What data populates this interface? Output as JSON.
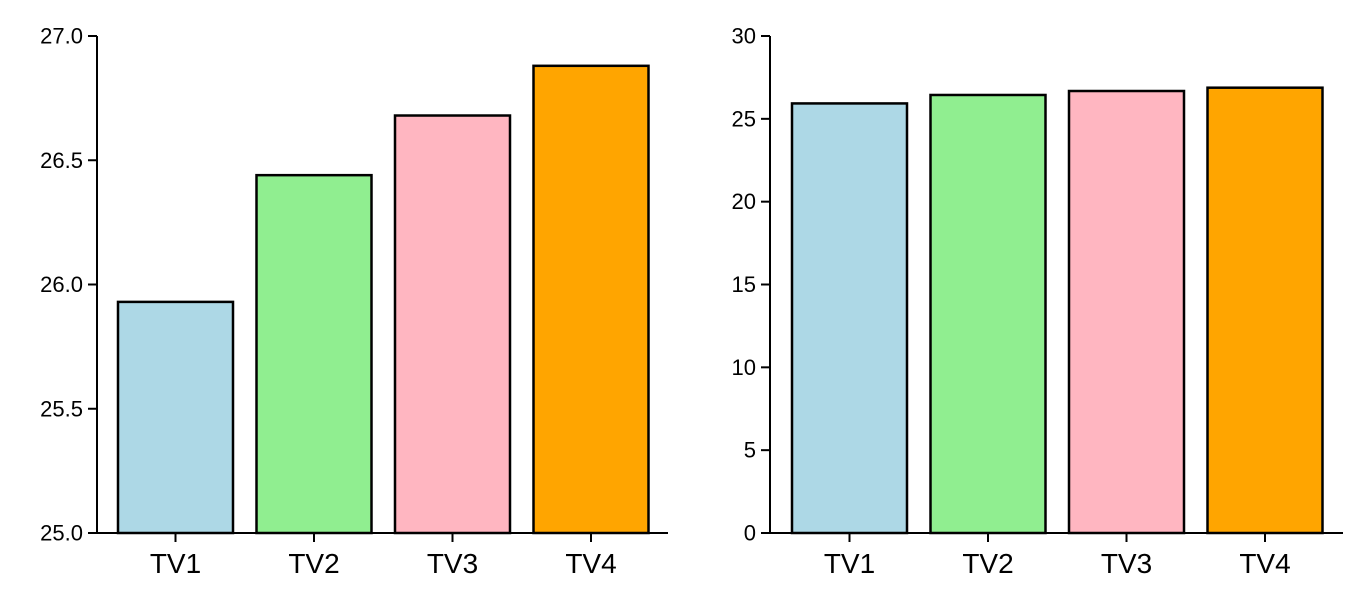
{
  "chart_data": [
    {
      "type": "bar",
      "categories": [
        "TV1",
        "TV2",
        "TV3",
        "TV4"
      ],
      "values": [
        25.93,
        26.44,
        26.68,
        26.88
      ],
      "colors": [
        "#add8e6",
        "#90ee90",
        "#ffb6c1",
        "#ffa500"
      ],
      "title": "",
      "xlabel": "",
      "ylabel": "",
      "ylim": [
        25.0,
        27.0
      ],
      "yticks": [
        "25.0",
        "25.5",
        "26.0",
        "26.5",
        "27.0"
      ],
      "grid": false,
      "legend": "none"
    },
    {
      "type": "bar",
      "categories": [
        "TV1",
        "TV2",
        "TV3",
        "TV4"
      ],
      "values": [
        25.93,
        26.44,
        26.68,
        26.88
      ],
      "colors": [
        "#add8e6",
        "#90ee90",
        "#ffb6c1",
        "#ffa500"
      ],
      "title": "",
      "xlabel": "",
      "ylabel": "",
      "ylim": [
        0,
        30
      ],
      "yticks": [
        "0",
        "5",
        "10",
        "15",
        "20",
        "25",
        "30"
      ],
      "grid": false,
      "legend": "none"
    }
  ]
}
